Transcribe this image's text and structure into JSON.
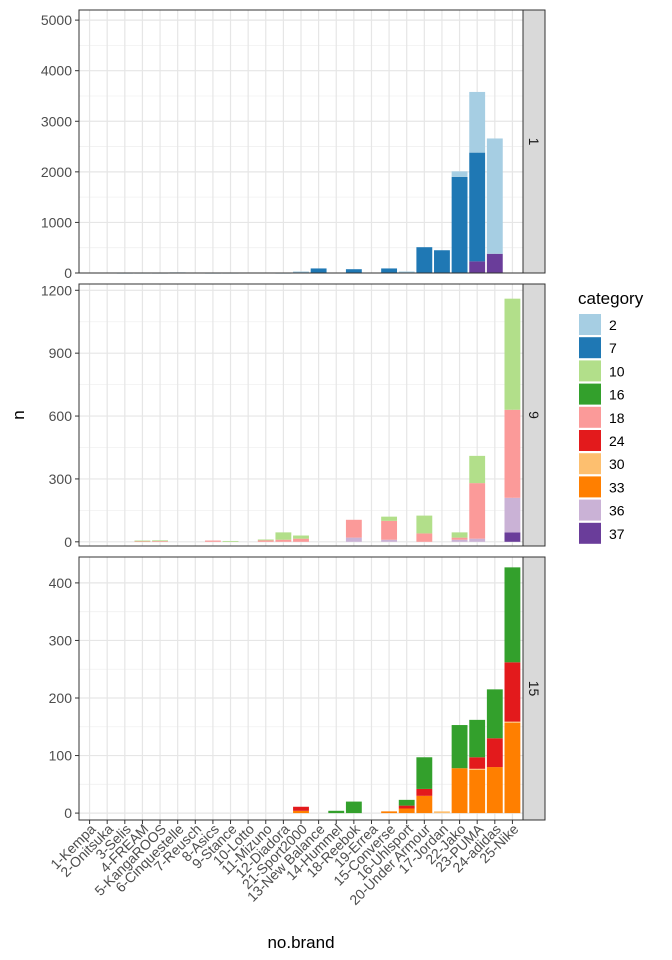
{
  "chart_data": {
    "type": "bar",
    "stacked": true,
    "faceted": true,
    "xlabel": "no.brand",
    "ylabel": "n",
    "grid": true,
    "legend_position": "right",
    "legend_title": "category",
    "categories": [
      "1-Kempa",
      "2-Onitsuka",
      "3-Selis",
      "4-FREAM",
      "5-KangaROOS",
      "6-Cinquestelle",
      "7-Reusch",
      "8-Asics",
      "9-Stance",
      "10-Lotto",
      "11-Mizuno",
      "12-Diadora",
      "21-Sport2000",
      "13-New Balance",
      "14-Hummel",
      "18-Reebok",
      "19-Errea",
      "15-Converse",
      "16-Uhlsport",
      "20-Under Armour",
      "17-Jordan",
      "22-Jako",
      "23-PUMA",
      "24-adidas",
      "25-Nike"
    ],
    "legend": [
      {
        "key": "2",
        "color": "#A6CEE3"
      },
      {
        "key": "7",
        "color": "#1F78B4"
      },
      {
        "key": "10",
        "color": "#B2DF8A"
      },
      {
        "key": "16",
        "color": "#33A02C"
      },
      {
        "key": "18",
        "color": "#FB9A99"
      },
      {
        "key": "24",
        "color": "#E31A1C"
      },
      {
        "key": "30",
        "color": "#FDBF6F"
      },
      {
        "key": "33",
        "color": "#FF7F00"
      },
      {
        "key": "36",
        "color": "#CAB2D6"
      },
      {
        "key": "37",
        "color": "#6A3D9A"
      }
    ],
    "panels": [
      {
        "strip": "1",
        "ylim": [
          0,
          5200
        ],
        "yticks": [
          0,
          1000,
          2000,
          3000,
          4000,
          5000
        ],
        "series": [
          {
            "name": "37",
            "values": [
              0,
              0,
              0,
              0,
              0,
              0,
              0,
              0,
              0,
              0,
              0,
              0,
              0,
              0,
              0,
              0,
              0,
              0,
              0,
              0,
              0,
              0,
              230,
              380,
              0
            ]
          },
          {
            "name": "7",
            "values": [
              0,
              0,
              0,
              0,
              5,
              8,
              0,
              0,
              0,
              0,
              0,
              0,
              15,
              90,
              0,
              75,
              0,
              90,
              0,
              510,
              450,
              1900,
              2150,
              0,
              0
            ]
          },
          {
            "name": "2",
            "values": [
              0,
              0,
              3,
              4,
              5,
              5,
              0,
              3,
              4,
              6,
              7,
              3,
              15,
              0,
              0,
              0,
              0,
              0,
              30,
              0,
              0,
              110,
              1200,
              2280,
              0
            ]
          }
        ],
        "stack_order": [
          "37",
          "7",
          "2"
        ]
      },
      {
        "strip": "9",
        "ylim": [
          -20,
          1230
        ],
        "yticks": [
          0,
          300,
          600,
          900,
          1200
        ],
        "series": [
          {
            "name": "37",
            "values": [
              0,
              0,
              0,
              0,
              0,
              0,
              0,
              0,
              0,
              0,
              0,
              0,
              0,
              0,
              0,
              0,
              0,
              0,
              0,
              0,
              0,
              0,
              0,
              0,
              45
            ]
          },
          {
            "name": "36",
            "values": [
              0,
              0,
              0,
              0,
              0,
              0,
              0,
              0,
              0,
              0,
              0,
              0,
              0,
              0,
              0,
              20,
              0,
              10,
              0,
              0,
              0,
              10,
              15,
              0,
              165
            ]
          },
          {
            "name": "18",
            "values": [
              0,
              0,
              0,
              3,
              4,
              0,
              0,
              6,
              0,
              0,
              8,
              10,
              15,
              0,
              0,
              85,
              0,
              90,
              0,
              40,
              0,
              10,
              265,
              0,
              420
            ]
          },
          {
            "name": "16",
            "values": [
              0,
              0,
              0,
              0,
              0,
              0,
              0,
              0,
              0,
              0,
              0,
              0,
              0,
              0,
              0,
              0,
              0,
              0,
              0,
              0,
              0,
              0,
              0,
              0,
              0
            ]
          },
          {
            "name": "10",
            "values": [
              0,
              0,
              0,
              3,
              3,
              0,
              0,
              0,
              4,
              0,
              3,
              35,
              15,
              0,
              0,
              0,
              0,
              20,
              0,
              85,
              0,
              25,
              130,
              0,
              530
            ]
          }
        ],
        "stack_order": [
          "37",
          "36",
          "18",
          "16",
          "10"
        ]
      },
      {
        "strip": "15",
        "ylim": [
          -12,
          445
        ],
        "yticks": [
          0,
          100,
          200,
          300,
          400
        ],
        "series": [
          {
            "name": "33",
            "values": [
              0,
              0,
              0,
              0,
              0,
              0,
              0,
              0,
              0,
              0,
              0,
              0,
              4,
              0,
              0,
              0,
              0,
              3,
              8,
              30,
              0,
              78,
              75,
              80,
              157
            ]
          },
          {
            "name": "30",
            "values": [
              0,
              0,
              0,
              0,
              0,
              0,
              0,
              0,
              0,
              0,
              0,
              0,
              0,
              0,
              0,
              0,
              0,
              0,
              0,
              0,
              3,
              0,
              2,
              0,
              2
            ]
          },
          {
            "name": "24",
            "values": [
              0,
              0,
              0,
              0,
              0,
              0,
              0,
              0,
              0,
              0,
              0,
              0,
              7,
              0,
              0,
              0,
              0,
              0,
              5,
              12,
              0,
              0,
              20,
              50,
              103
            ]
          },
          {
            "name": "16",
            "values": [
              0,
              0,
              0,
              0,
              0,
              0,
              0,
              0,
              0,
              0,
              0,
              0,
              0,
              0,
              4,
              20,
              0,
              0,
              10,
              55,
              0,
              75,
              65,
              85,
              165
            ]
          }
        ],
        "stack_order": [
          "33",
          "30",
          "24",
          "16"
        ]
      }
    ]
  }
}
